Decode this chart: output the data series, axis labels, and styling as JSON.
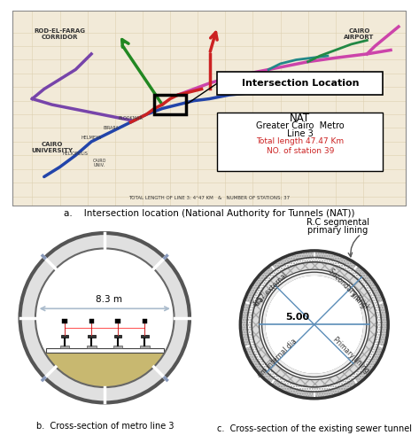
{
  "fig_width": 4.73,
  "fig_height": 5.0,
  "dpi": 100,
  "bg_color": "#ffffff",
  "caption_a": "a.    Intersection location (National Authority for Tunnels (NAT))",
  "caption_b": "b.  Cross-section of metro line 3",
  "caption_c": "c.  Cross-section of the existing sewer tunnel",
  "metro_diameter_label": "8.3 m",
  "sewer_label_rc": "R.C segmental\nprimary lining",
  "sewer_label_500": "5.00",
  "fill_color": "#c8b870",
  "blue_dim": "#5b8db8"
}
